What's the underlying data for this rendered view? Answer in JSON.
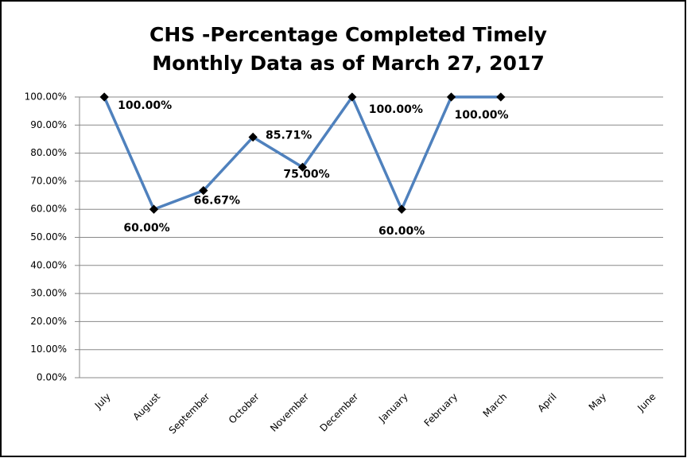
{
  "chart_data": {
    "type": "line",
    "title": [
      "CHS -Percentage Completed Timely",
      "Monthly Data as of March 27, 2017"
    ],
    "categories": [
      "July",
      "August",
      "September",
      "October",
      "November",
      "December",
      "January",
      "February",
      "March",
      "April",
      "May",
      "June"
    ],
    "series": [
      {
        "color": "#4f81bd",
        "values": [
          100,
          60,
          66.67,
          85.71,
          75,
          100,
          60,
          100,
          100,
          null,
          null,
          null
        ],
        "value_labels": [
          "100.00%",
          "60.00%",
          "66.67%",
          "85.71%",
          "75.00%",
          "100.00%",
          "60.00%",
          "100.00%",
          null,
          null,
          null,
          null
        ]
      }
    ],
    "ylim": [
      0,
      100
    ],
    "yticks": [
      {
        "value": 0,
        "label": "0.00%"
      },
      {
        "value": 10,
        "label": "10.00%"
      },
      {
        "value": 20,
        "label": "20.00%"
      },
      {
        "value": 30,
        "label": "30.00%"
      },
      {
        "value": 40,
        "label": "40.00%"
      },
      {
        "value": 50,
        "label": "50.00%"
      },
      {
        "value": 60,
        "label": "60.00%"
      },
      {
        "value": 70,
        "label": "70.00%"
      },
      {
        "value": 80,
        "label": "80.00%"
      },
      {
        "value": 90,
        "label": "90.00%"
      },
      {
        "value": 100,
        "label": "100.00%"
      }
    ],
    "grid": true
  }
}
